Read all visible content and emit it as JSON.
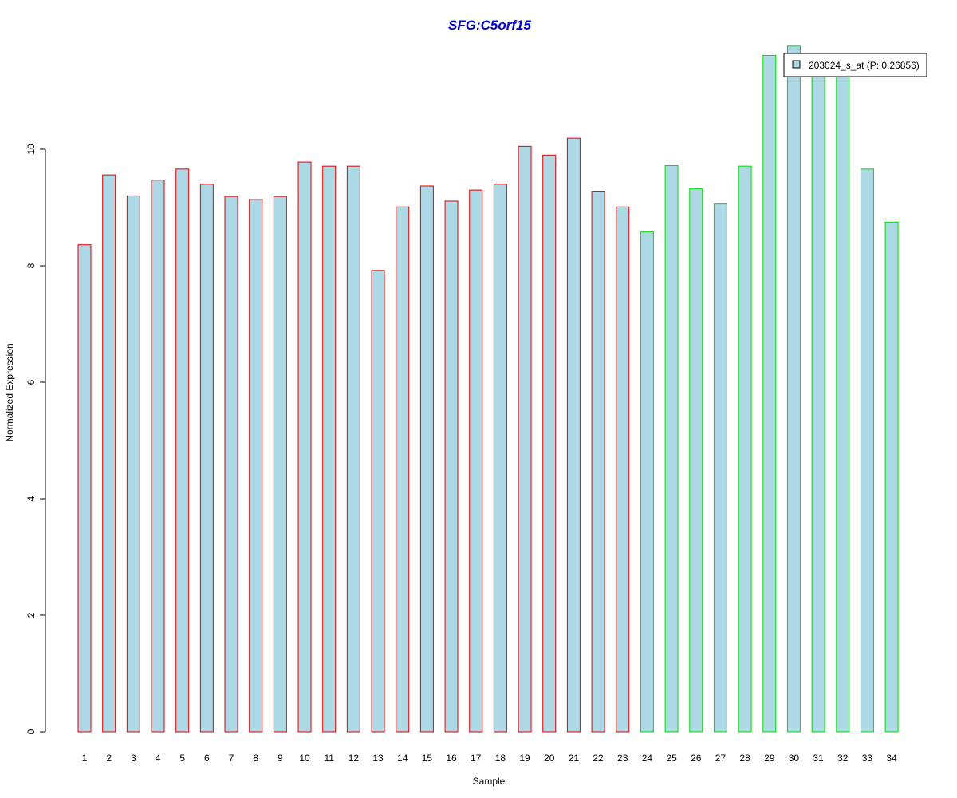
{
  "chart_data": {
    "type": "bar",
    "title": "SFG:C5orf15",
    "xlabel": "Sample",
    "ylabel": "Normalized Expression",
    "categories": [
      "1",
      "2",
      "3",
      "4",
      "5",
      "6",
      "7",
      "8",
      "9",
      "10",
      "11",
      "12",
      "13",
      "14",
      "15",
      "16",
      "17",
      "18",
      "19",
      "20",
      "21",
      "22",
      "23",
      "24",
      "25",
      "26",
      "27",
      "28",
      "29",
      "30",
      "31",
      "32",
      "33",
      "34"
    ],
    "values": [
      8.36,
      9.56,
      9.2,
      9.47,
      9.66,
      9.4,
      9.19,
      9.14,
      9.19,
      9.78,
      9.71,
      9.71,
      7.92,
      9.01,
      9.37,
      9.11,
      9.3,
      9.4,
      10.05,
      9.9,
      10.19,
      9.28,
      9.01,
      8.58,
      9.72,
      9.32,
      9.06,
      9.71,
      11.61,
      11.77,
      11.5,
      11.5,
      9.66,
      8.75
    ],
    "groups": [
      "red",
      "red",
      "red",
      "red",
      "red",
      "red",
      "red",
      "red",
      "red",
      "red",
      "red",
      "red",
      "red",
      "red",
      "red",
      "red",
      "red",
      "red",
      "red",
      "red",
      "red",
      "red",
      "red",
      "green",
      "green",
      "green",
      "green",
      "green",
      "green",
      "green",
      "green",
      "green",
      "green",
      "green"
    ],
    "ylim": [
      0,
      12
    ],
    "yticks": [
      0,
      2,
      4,
      6,
      8,
      10
    ],
    "grid": false,
    "legend": {
      "placement": "top-right",
      "entries": [
        {
          "label": "203024_s_at (P: 0.26856)"
        }
      ]
    },
    "colors": {
      "title": "#0000cc",
      "bar_fill": "#add8e6",
      "border_red": "#e00000",
      "border_green": "#00dd00",
      "axis": "#000000"
    }
  }
}
